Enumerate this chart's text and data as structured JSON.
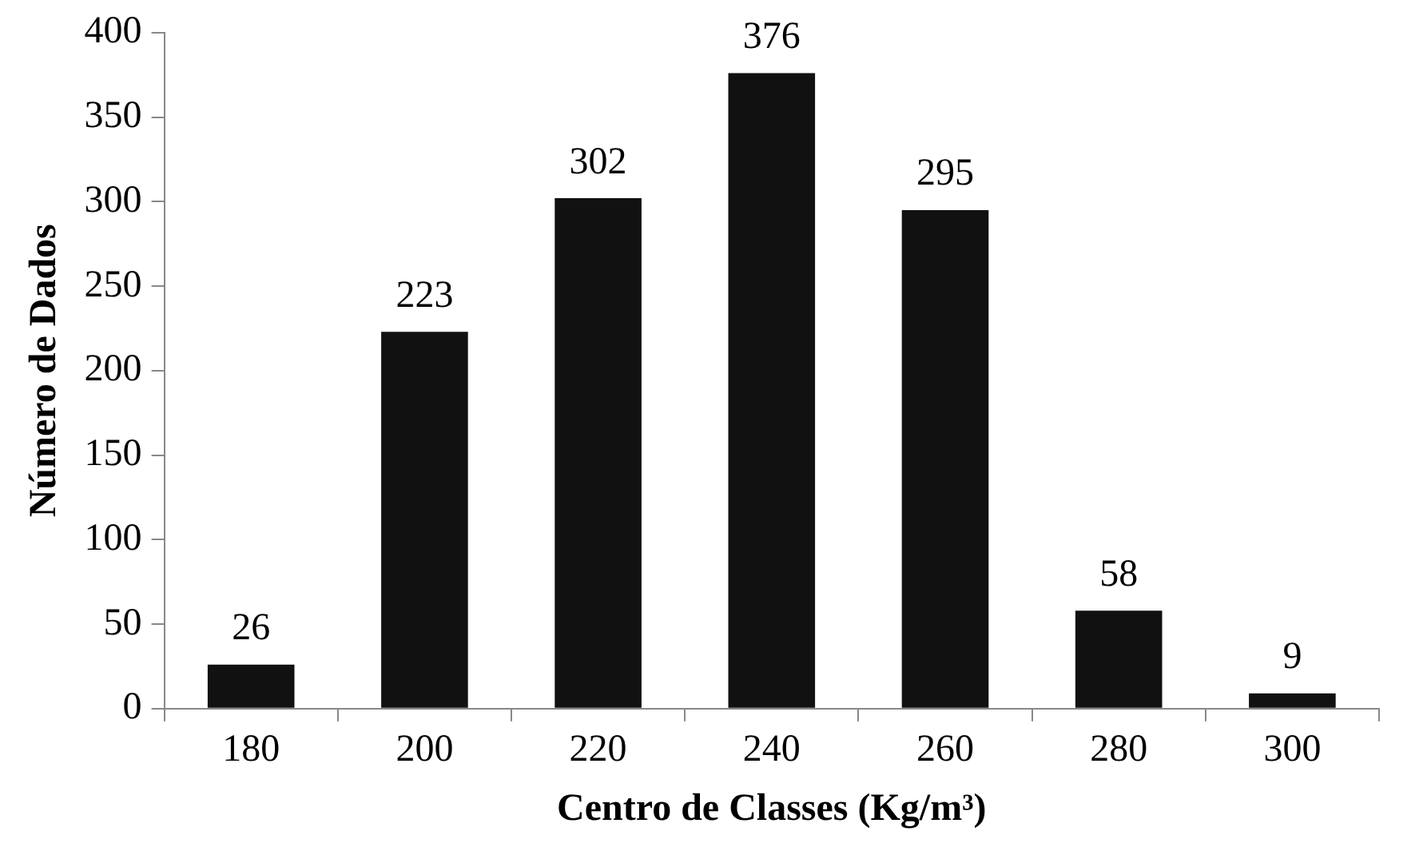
{
  "chart_data": {
    "type": "bar",
    "xlabel": "Centro de Classes (Kg/m³)",
    "ylabel": "Número de Dados",
    "categories": [
      "180",
      "200",
      "220",
      "240",
      "260",
      "280",
      "300"
    ],
    "values": [
      26,
      223,
      302,
      376,
      295,
      58,
      9
    ],
    "color": "#111111",
    "ylim": [
      0,
      400
    ],
    "yticks": [
      0,
      50,
      100,
      150,
      200,
      250,
      300,
      350,
      400
    ],
    "data_labels": true,
    "legend": false
  }
}
